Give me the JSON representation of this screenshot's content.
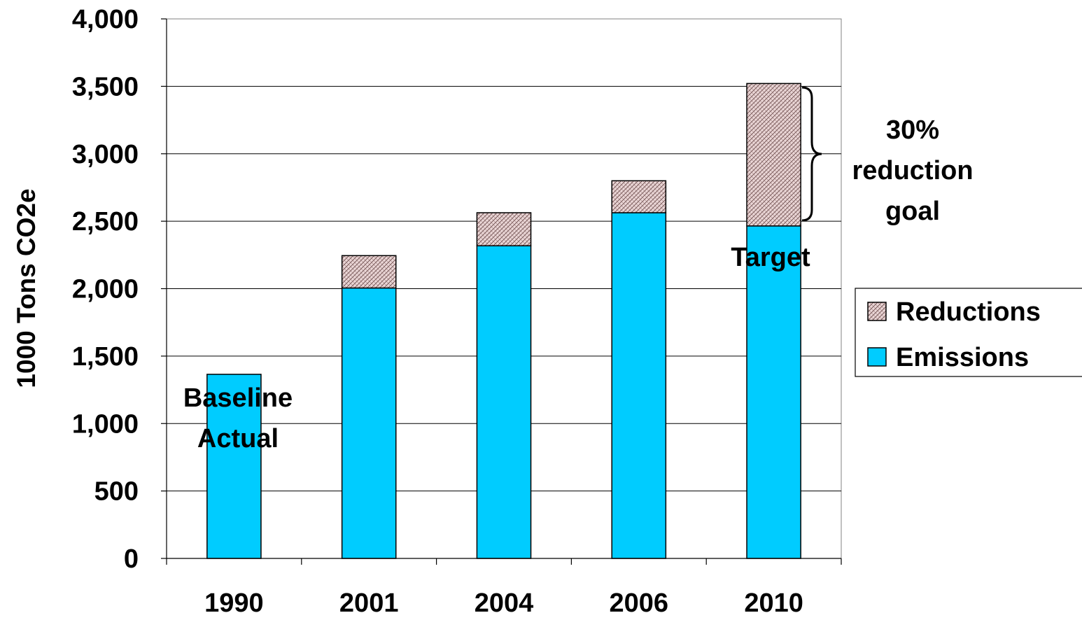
{
  "chart_data": {
    "type": "bar",
    "stacked": true,
    "categories": [
      "1990",
      "2001",
      "2004",
      "2006",
      "2010"
    ],
    "series": [
      {
        "name": "Emissions",
        "values": [
          1365,
          2005,
          2318,
          2563,
          2465
        ],
        "color": "#00ccff",
        "pattern": "solid"
      },
      {
        "name": "Reductions",
        "values": [
          0,
          240,
          245,
          237,
          1056
        ],
        "color": "#d9b3b3",
        "pattern": "crosshatch"
      }
    ],
    "ylabel": "1000 Tons CO2e",
    "xlabel": "",
    "title": "",
    "ylim": [
      0,
      4000
    ],
    "yticks": [
      0,
      500,
      1000,
      1500,
      2000,
      2500,
      3000,
      3500,
      4000
    ],
    "ytick_labels": [
      "0",
      "500",
      "1,000",
      "1,500",
      "2,000",
      "2,500",
      "3,000",
      "3,500",
      "4,000"
    ],
    "grid": "horizontal",
    "legend": {
      "placement": "right",
      "entries": [
        "Reductions",
        "Emissions"
      ]
    },
    "annotations": {
      "baseline": [
        "Baseline",
        "Actual"
      ],
      "target": "Target",
      "goal": [
        "30%",
        "reduction",
        "goal"
      ]
    }
  }
}
